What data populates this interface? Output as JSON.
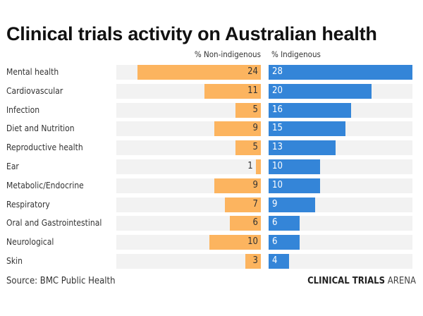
{
  "title": "Clinical trials activity on Australian health",
  "source": "Source: BMC Public Health",
  "brand": {
    "bold": "CLINICAL TRIALS",
    "light": "ARENA"
  },
  "colors": {
    "non_indigenous": "#fcb45f",
    "indigenous": "#3485d8",
    "background_bar": "#f2f2f2"
  },
  "chart_data": {
    "type": "bar",
    "orientation": "horizontal-diverging",
    "title": "Clinical trials activity on Australian health",
    "categories": [
      "Mental health",
      "Cardiovascular",
      "Infection",
      "Diet and Nutrition",
      "Reproductive health",
      "Ear",
      "Metabolic/Endocrine",
      "Respiratory",
      "Oral and Gastrointestinal",
      "Neurological",
      "Skin"
    ],
    "series": [
      {
        "name": "% Non-indigenous",
        "values": [
          24,
          11,
          5,
          9,
          5,
          1,
          9,
          7,
          6,
          10,
          3
        ]
      },
      {
        "name": "% Indigenous",
        "values": [
          28,
          20,
          16,
          15,
          13,
          10,
          10,
          9,
          6,
          6,
          4
        ]
      }
    ],
    "xlim": [
      0,
      28
    ],
    "grid": false,
    "legend": "top"
  }
}
